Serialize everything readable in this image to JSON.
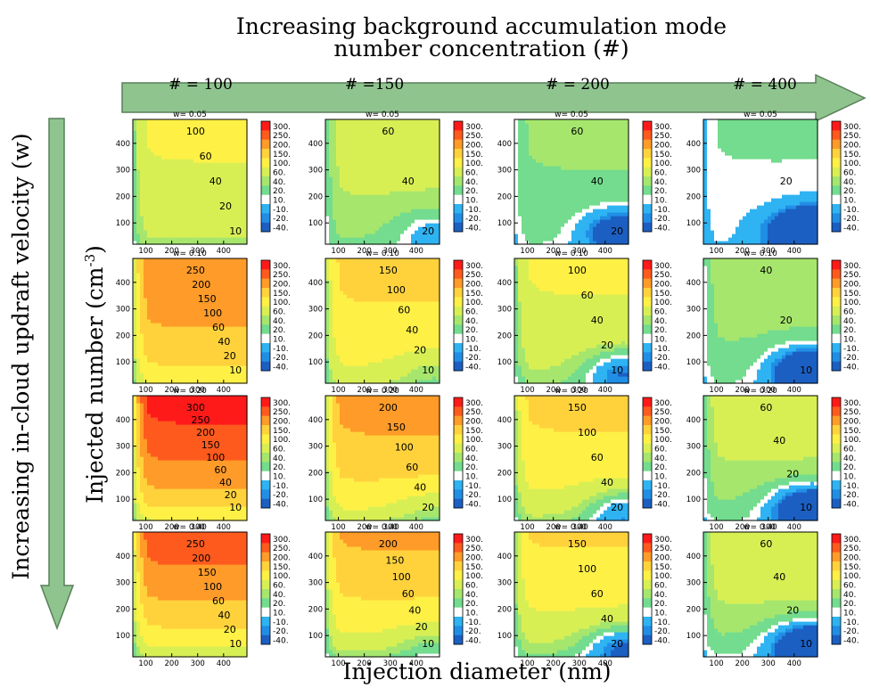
{
  "title_line1": "Increasing background accumulation mode",
  "title_line2": "number concentration (#)",
  "row_arrow_label": "Increasing in-cloud updraft velocity (w)",
  "y_axis_label_main": "Injected number (cm",
  "y_axis_label_exp": "-3",
  "y_axis_label_close": ")",
  "x_axis_label": "Injection diameter (nm)",
  "column_labels": [
    "# = 100",
    "# =150",
    "# = 200",
    "# = 400"
  ],
  "row_labels": [
    "w= 0.05",
    "w= 0.10",
    "w= 0.20",
    "w= 0.40"
  ],
  "colors": {
    "arrow": "#8fc48f",
    "arrow_edge": "#5a7f5a"
  },
  "colorbar": {
    "labels": [
      "300.",
      "250.",
      "200.",
      "150.",
      "100.",
      "60.",
      "40.",
      "20.",
      "10.",
      "-10.",
      "-20.",
      "-40."
    ],
    "colors": [
      "#ff1a1a",
      "#ff5a1e",
      "#ff9b28",
      "#ffd23c",
      "#fff046",
      "#d8ef54",
      "#a6e66d",
      "#73dc8e",
      "#ffffff",
      "#2fb3f2",
      "#218ee6",
      "#1c5fc2"
    ]
  },
  "chart_data": {
    "type": "heatmap",
    "xlabel": "Injection diameter (nm)",
    "ylabel": "Injected number (cm-3)",
    "xticks": [
      100,
      200,
      300,
      400
    ],
    "yticks": [
      100,
      200,
      300,
      400
    ],
    "xlim": [
      50,
      490
    ],
    "ylim": [
      20,
      490
    ],
    "panels": [
      {
        "row": 0,
        "col": 0,
        "title": "w= 0.05",
        "contour_labels": [
          "100",
          "60",
          "40",
          "20",
          "10"
        ]
      },
      {
        "row": 0,
        "col": 1,
        "title": "w= 0.05",
        "contour_labels": [
          "60",
          "40",
          "20"
        ]
      },
      {
        "row": 0,
        "col": 2,
        "title": "w= 0.05",
        "contour_labels": [
          "60",
          "40",
          "20"
        ]
      },
      {
        "row": 0,
        "col": 3,
        "title": "w= 0.05",
        "contour_labels": [
          "20"
        ]
      },
      {
        "row": 1,
        "col": 0,
        "title": "w= 0.10",
        "contour_labels": [
          "250",
          "200",
          "150",
          "100",
          "60",
          "40",
          "20",
          "10"
        ]
      },
      {
        "row": 1,
        "col": 1,
        "title": "w= 0.10",
        "contour_labels": [
          "150",
          "100",
          "60",
          "40",
          "20",
          "10"
        ]
      },
      {
        "row": 1,
        "col": 2,
        "title": "w= 0.10",
        "contour_labels": [
          "100",
          "60",
          "40",
          "20",
          "10"
        ]
      },
      {
        "row": 1,
        "col": 3,
        "title": "w= 0.10",
        "contour_labels": [
          "40",
          "20",
          "10"
        ]
      },
      {
        "row": 2,
        "col": 0,
        "title": "w= 0.20",
        "contour_labels": [
          "300",
          "250",
          "200",
          "150",
          "100",
          "60",
          "40",
          "20",
          "10"
        ]
      },
      {
        "row": 2,
        "col": 1,
        "title": "w= 0.20",
        "contour_labels": [
          "200",
          "150",
          "100",
          "60",
          "40",
          "20"
        ]
      },
      {
        "row": 2,
        "col": 2,
        "title": "w= 0.20",
        "contour_labels": [
          "150",
          "100",
          "60",
          "40",
          "20"
        ]
      },
      {
        "row": 2,
        "col": 3,
        "title": "w= 0.20",
        "contour_labels": [
          "60",
          "40",
          "20",
          "10"
        ]
      },
      {
        "row": 3,
        "col": 0,
        "title": "w= 0.40",
        "contour_labels": [
          "250",
          "200",
          "150",
          "100",
          "60",
          "40",
          "20",
          "10"
        ]
      },
      {
        "row": 3,
        "col": 1,
        "title": "w= 0.40",
        "contour_labels": [
          "200",
          "150",
          "100",
          "60",
          "40",
          "20",
          "10"
        ]
      },
      {
        "row": 3,
        "col": 2,
        "title": "w= 0.40",
        "contour_labels": [
          "150",
          "100",
          "60",
          "40",
          "20"
        ]
      },
      {
        "row": 3,
        "col": 3,
        "title": "w= 0.40",
        "contour_labels": [
          "60",
          "40",
          "20",
          "10"
        ]
      }
    ]
  }
}
